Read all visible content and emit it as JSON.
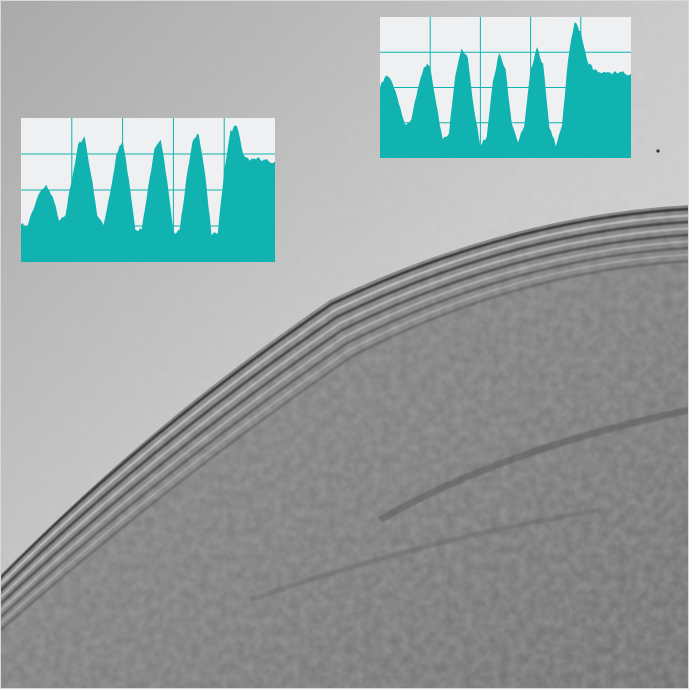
{
  "image": {
    "description_kind": "tem-micrograph",
    "colors": {
      "background_light": "#cfcfcf",
      "background_dark": "#707070",
      "lattice_fringe_dark": "#222222",
      "profile_fill": "#11b3b0",
      "profile_panel": "#eef0f2",
      "profile_grid": "#11b3b0"
    }
  },
  "chart_data": [
    {
      "type": "area",
      "title": "",
      "xlabel": "",
      "ylabel": "",
      "grid": true,
      "ylim": [
        0,
        1
      ],
      "x": [
        0,
        1,
        2,
        3,
        4,
        5,
        6,
        7,
        8,
        9,
        10,
        11,
        12,
        13,
        14,
        15,
        16,
        17,
        18,
        19,
        20,
        21,
        22,
        23,
        24,
        25,
        26,
        27,
        28,
        29,
        30,
        31,
        32,
        33,
        34,
        35,
        36,
        37,
        38,
        39,
        40
      ],
      "values": [
        0.26,
        0.24,
        0.38,
        0.5,
        0.52,
        0.44,
        0.3,
        0.34,
        0.56,
        0.8,
        0.88,
        0.62,
        0.32,
        0.26,
        0.48,
        0.74,
        0.84,
        0.58,
        0.24,
        0.22,
        0.5,
        0.8,
        0.86,
        0.56,
        0.2,
        0.24,
        0.56,
        0.82,
        0.9,
        0.62,
        0.18,
        0.2,
        0.64,
        0.92,
        0.94,
        0.74,
        0.72,
        0.72,
        0.7,
        0.7,
        0.7
      ]
    },
    {
      "type": "area",
      "title": "",
      "xlabel": "",
      "ylabel": "",
      "grid": true,
      "ylim": [
        0,
        1
      ],
      "x": [
        0,
        1,
        2,
        3,
        4,
        5,
        6,
        7,
        8,
        9,
        10,
        11,
        12,
        13,
        14,
        15,
        16,
        17,
        18,
        19,
        20,
        21,
        22,
        23,
        24,
        25,
        26,
        27,
        28,
        29,
        30,
        31,
        32,
        33,
        34,
        35,
        36,
        37,
        38,
        39,
        40
      ],
      "values": [
        0.5,
        0.58,
        0.54,
        0.4,
        0.22,
        0.26,
        0.5,
        0.66,
        0.64,
        0.36,
        0.14,
        0.18,
        0.58,
        0.78,
        0.72,
        0.34,
        0.08,
        0.16,
        0.56,
        0.74,
        0.62,
        0.26,
        0.12,
        0.22,
        0.62,
        0.8,
        0.66,
        0.2,
        0.1,
        0.24,
        0.7,
        0.96,
        0.9,
        0.7,
        0.62,
        0.6,
        0.62,
        0.6,
        0.6,
        0.6,
        0.6
      ]
    }
  ]
}
